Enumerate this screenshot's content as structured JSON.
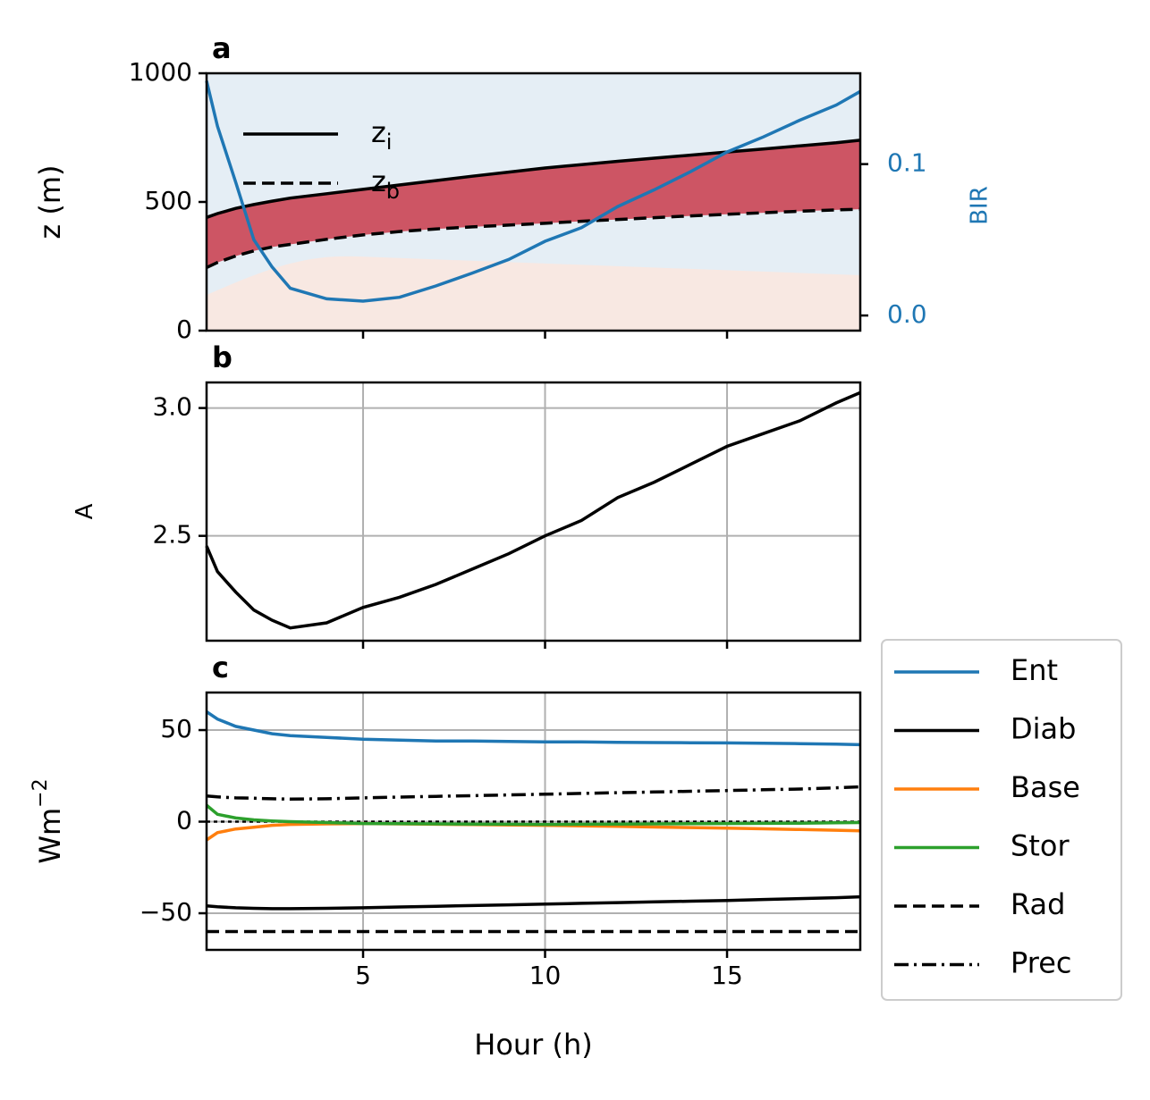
{
  "chart_data": [
    {
      "type": "line",
      "panel_label": "a",
      "ylabel": "z (m)",
      "y2label": "BIR",
      "y2color": "#1f77b4",
      "x": [
        0.7,
        1,
        1.5,
        2,
        2.5,
        3,
        4,
        5,
        6,
        7,
        8,
        9,
        10,
        11,
        12,
        13,
        14,
        15,
        16,
        17,
        18,
        18.66
      ],
      "xlim": [
        0.7,
        18.66
      ],
      "xticks": [
        5,
        10,
        15
      ],
      "xticklabels": false,
      "ylim": [
        0,
        1000
      ],
      "yticks": [
        0,
        500,
        1000
      ],
      "y2lim": [
        -0.01,
        0.16
      ],
      "y2ticks": [
        {
          "value": 0,
          "label": "0.0"
        },
        0.1
      ],
      "grid": false,
      "legend": "upper left",
      "band_color": "#c9394a",
      "background": "#e5eef5",
      "series": [
        {
          "name": "z",
          "name_sub": "i",
          "color": "#000000",
          "dash": "solid",
          "values": [
            440,
            455,
            475,
            490,
            503,
            515,
            532,
            549,
            566,
            583,
            600,
            616,
            632,
            645,
            658,
            670,
            682,
            694,
            706,
            718,
            730,
            740
          ]
        },
        {
          "name": "z",
          "name_sub": "b",
          "color": "#000000",
          "dash": "dashed",
          "values": [
            245,
            265,
            290,
            310,
            325,
            335,
            355,
            372,
            385,
            395,
            403,
            410,
            417,
            425,
            432,
            439,
            446,
            452,
            458,
            464,
            469,
            472
          ]
        },
        {
          "color": "#1f77b4",
          "dash": "solid",
          "axis": "y2",
          "values": [
            0.155,
            0.125,
            0.088,
            0.05,
            0.032,
            0.018,
            0.011,
            0.0095,
            0.012,
            0.0195,
            0.028,
            0.037,
            0.049,
            0.058,
            0.072,
            0.083,
            0.095,
            0.108,
            0.118,
            0.129,
            0.139,
            0.148
          ]
        }
      ]
    },
    {
      "type": "line",
      "panel_label": "b",
      "ylabel": "A",
      "x": [
        0.7,
        1,
        1.5,
        2,
        2.5,
        3,
        4,
        5,
        6,
        7,
        8,
        9,
        10,
        11,
        12,
        13,
        14,
        15,
        16,
        17,
        18,
        18.66
      ],
      "xlim": [
        0.7,
        18.66
      ],
      "xticks": [
        5,
        10,
        15
      ],
      "xticklabels": false,
      "ylim": [
        2.09,
        3.1
      ],
      "yticks": [
        2.5,
        {
          "value": 3,
          "label": "3.0"
        }
      ],
      "grid": true,
      "series": [
        {
          "color": "#000000",
          "dash": "solid",
          "values": [
            2.46,
            2.36,
            2.28,
            2.21,
            2.17,
            2.14,
            2.16,
            2.22,
            2.26,
            2.31,
            2.37,
            2.43,
            2.5,
            2.56,
            2.65,
            2.71,
            2.78,
            2.85,
            2.9,
            2.95,
            3.02,
            3.06
          ]
        }
      ]
    },
    {
      "type": "line",
      "panel_label": "c",
      "ylabel": "Wm",
      "ylabel_sup": "−2",
      "xlabel": "Hour (h)",
      "x": [
        0.7,
        1,
        1.5,
        2,
        2.5,
        3,
        4,
        5,
        6,
        7,
        8,
        9,
        10,
        11,
        12,
        13,
        14,
        15,
        16,
        17,
        18,
        18.66
      ],
      "xlim": [
        0.7,
        18.66
      ],
      "xticks": [
        5,
        10,
        15
      ],
      "ylim": [
        -70,
        70.5
      ],
      "yticks": [
        {
          "value": -50,
          "label": "−50"
        },
        0,
        50
      ],
      "grid": true,
      "zero_line": true,
      "legend": "outside right",
      "series": [
        {
          "name": "Ent",
          "color": "#1f77b4",
          "dash": "solid",
          "values": [
            60,
            56,
            52,
            50,
            48,
            47,
            46,
            45,
            44.5,
            44,
            44,
            43.8,
            43.5,
            43.5,
            43.3,
            43.2,
            43.1,
            43,
            42.8,
            42.6,
            42.3,
            42
          ]
        },
        {
          "name": "Diab",
          "color": "#000000",
          "dash": "solid",
          "values": [
            -46,
            -46.5,
            -47,
            -47.3,
            -47.5,
            -47.5,
            -47.3,
            -47,
            -46.6,
            -46.2,
            -45.8,
            -45.4,
            -45,
            -44.6,
            -44.2,
            -43.8,
            -43.4,
            -43,
            -42.5,
            -42,
            -41.5,
            -41
          ]
        },
        {
          "name": "Base",
          "color": "#ff7f0e",
          "dash": "solid",
          "values": [
            -10,
            -6,
            -4,
            -3,
            -2,
            -1.5,
            -1.2,
            -1,
            -1.2,
            -1.4,
            -1.6,
            -1.8,
            -2,
            -2.3,
            -2.6,
            -2.9,
            -3.2,
            -3.5,
            -3.9,
            -4.3,
            -4.7,
            -5
          ]
        },
        {
          "name": "Stor",
          "color": "#2ca02c",
          "dash": "solid",
          "values": [
            9,
            4,
            2,
            1,
            0.4,
            0,
            -0.5,
            -1,
            -1.1,
            -1.2,
            -1.3,
            -1.4,
            -1.5,
            -1.4,
            -1.3,
            -1.2,
            -1.1,
            -1,
            -0.9,
            -0.8,
            -0.6,
            -0.5
          ]
        },
        {
          "name": "Rad",
          "color": "#000000",
          "dash": "dashed",
          "values": [
            -60,
            -60,
            -60,
            -60,
            -60,
            -60,
            -60,
            -60,
            -60,
            -60,
            -60,
            -60,
            -60,
            -60,
            -60,
            -60,
            -60,
            -60,
            -60,
            -60,
            -60,
            -60
          ]
        },
        {
          "name": "Prec",
          "color": "#000000",
          "dash": "dashdot",
          "values": [
            14,
            13.5,
            13,
            12.8,
            12.5,
            12.3,
            12.5,
            13,
            13.4,
            13.8,
            14.2,
            14.6,
            15,
            15.4,
            15.8,
            16.2,
            16.6,
            17,
            17.4,
            17.8,
            18.5,
            19
          ]
        }
      ]
    }
  ]
}
